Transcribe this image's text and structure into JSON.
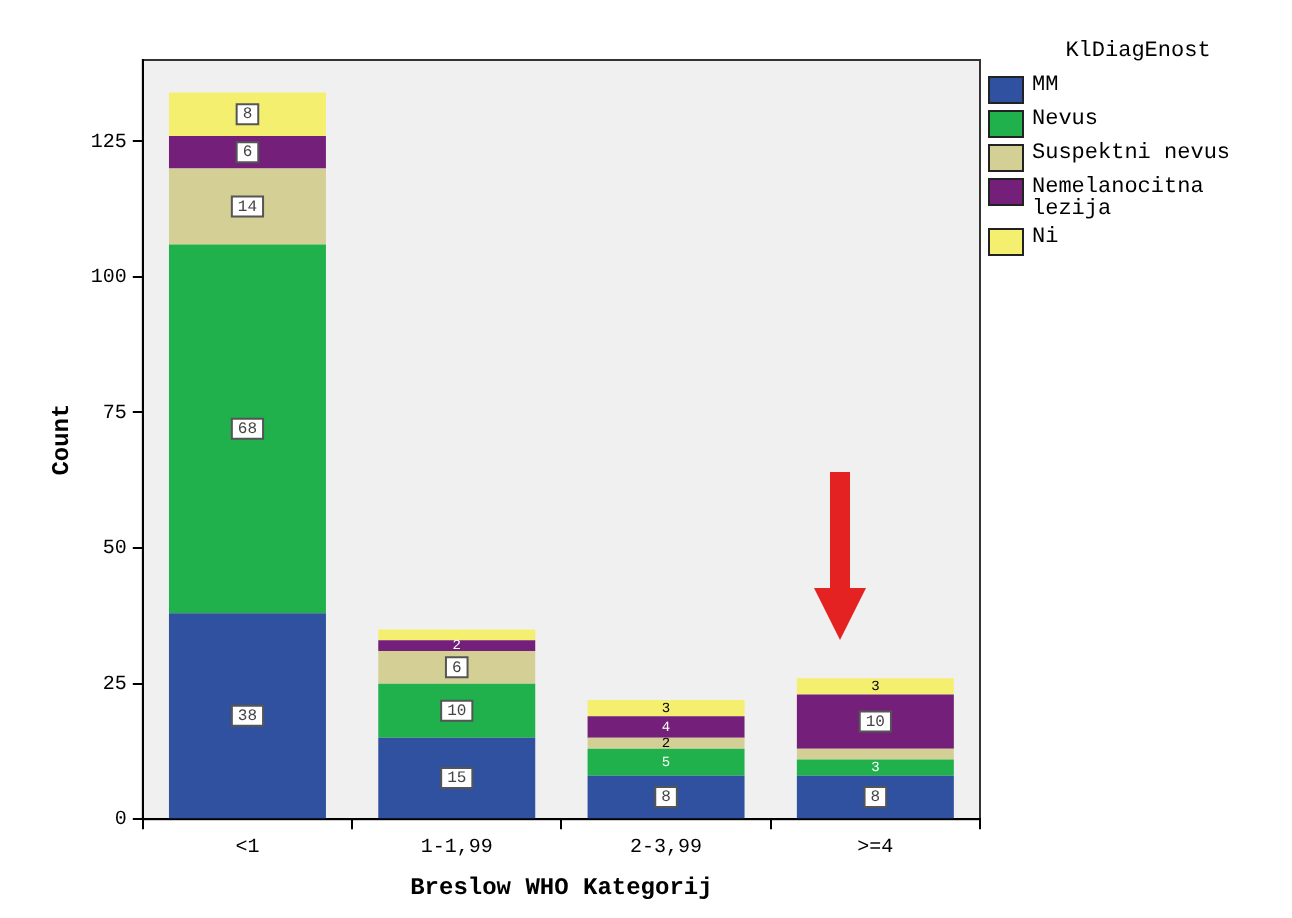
{
  "chart_data": {
    "type": "bar",
    "stacked": true,
    "xlabel": "Breslow WHO Kategorij",
    "ylabel": "Count",
    "legend_title": "KlDiagEnost",
    "legend": "right",
    "grid": false,
    "categories": [
      "<1",
      "1-1,99",
      "2-3,99",
      ">=4"
    ],
    "ylim": [
      0,
      140
    ],
    "yticks": [
      0,
      25,
      50,
      75,
      100,
      125
    ],
    "series": [
      {
        "name": "MM",
        "color": "#3050a0",
        "values": [
          38,
          15,
          8,
          8
        ],
        "value_labels": [
          "38",
          "15",
          "8",
          "8"
        ]
      },
      {
        "name": "Nevus",
        "color": "#20b14c",
        "values": [
          68,
          10,
          5,
          3
        ],
        "value_labels": [
          "68",
          "10",
          "5",
          "3"
        ]
      },
      {
        "name": "Suspektni nevus",
        "color": "#d4cf94",
        "values": [
          14,
          6,
          2,
          2
        ],
        "value_labels": [
          "14",
          "6",
          "2",
          null
        ]
      },
      {
        "name": "Nemelanocitna lezija",
        "color": "#74207a",
        "values": [
          6,
          2,
          4,
          10
        ],
        "value_labels": [
          "6",
          "2",
          "4",
          "10"
        ]
      },
      {
        "name": "Ni",
        "color": "#f5ef70",
        "values": [
          8,
          2,
          3,
          3
        ],
        "value_labels": [
          "8",
          null,
          "3",
          "3"
        ]
      }
    ]
  }
}
